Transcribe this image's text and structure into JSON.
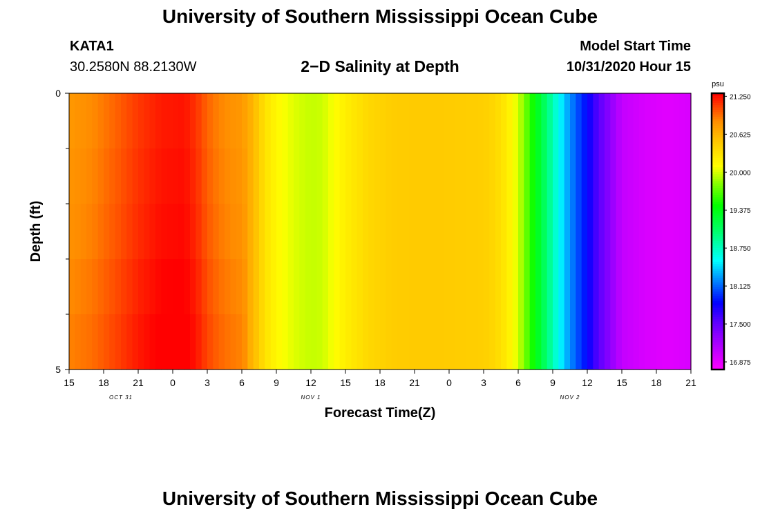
{
  "header": {
    "title": "University of Southern Mississippi Ocean Cube",
    "station_name": "KATA1",
    "station_coords": "30.2580N 88.2130W",
    "subtitle": "2−D Salinity at Depth",
    "model_start_label": "Model Start Time",
    "model_start_value": "10/31/2020 Hour 15"
  },
  "footer": {
    "title": "University of Southern Mississippi Ocean Cube"
  },
  "chart_data": {
    "type": "heatmap",
    "title": "2-D Salinity at Depth",
    "xlabel": "Forecast Time(Z)",
    "ylabel": "Depth (ft)",
    "x_hours": [
      0,
      3,
      6,
      9,
      12,
      15,
      18,
      21,
      24,
      27,
      30,
      33,
      36,
      39,
      42,
      45,
      48,
      51,
      54
    ],
    "x_tick_labels": [
      "15",
      "18",
      "21",
      "0",
      "3",
      "6",
      "9",
      "12",
      "15",
      "18",
      "21",
      "0",
      "3",
      "6",
      "9",
      "12",
      "15",
      "18",
      "21"
    ],
    "x_range_hours": [
      0,
      54
    ],
    "date_labels": [
      {
        "hour": 4.5,
        "text": "OCT 31"
      },
      {
        "hour": 21,
        "text": "NOV 1"
      },
      {
        "hour": 43.5,
        "text": "NOV 2"
      }
    ],
    "y_range": [
      0,
      5
    ],
    "y_tick_labels": [
      "0",
      "5"
    ],
    "y_minor_ticks": [
      1,
      2,
      3,
      4
    ],
    "depth_bands": 5,
    "salinity_profile": {
      "hours": [
        0,
        2,
        4,
        6,
        8,
        10,
        11,
        12,
        13,
        14,
        15,
        16,
        17,
        18,
        19,
        20,
        21,
        22,
        23,
        24,
        26,
        28,
        30,
        32,
        36,
        37,
        38,
        39,
        40,
        41,
        42,
        43,
        44,
        45,
        46,
        47,
        48,
        50,
        52,
        54
      ],
      "values": [
        20.78,
        20.85,
        20.98,
        21.12,
        21.22,
        21.24,
        21.14,
        20.98,
        20.88,
        20.82,
        20.78,
        20.6,
        20.32,
        20.15,
        20.06,
        20.0,
        19.96,
        19.98,
        20.1,
        20.22,
        20.38,
        20.46,
        20.48,
        20.48,
        20.45,
        20.38,
        20.25,
        20.0,
        19.6,
        19.2,
        18.8,
        18.4,
        18.1,
        17.85,
        17.55,
        17.3,
        17.05,
        16.95,
        16.9,
        16.95
      ]
    },
    "depth_offsets": [
      0.0,
      0.02,
      0.04,
      0.07,
      0.1
    ],
    "colorbar": {
      "unit": "psu",
      "min": 16.75,
      "max": 21.3,
      "tick_labels": [
        "21.250",
        "20.625",
        "20.000",
        "19.375",
        "18.750",
        "18.125",
        "17.500",
        "16.875"
      ],
      "tick_values": [
        21.25,
        20.625,
        20.0,
        19.375,
        18.75,
        18.125,
        17.5,
        16.875
      ],
      "stops": [
        {
          "v": 16.75,
          "color": "#ff00ff"
        },
        {
          "v": 17.15,
          "color": "#b000ff"
        },
        {
          "v": 17.55,
          "color": "#5a00ff"
        },
        {
          "v": 17.85,
          "color": "#0000ff"
        },
        {
          "v": 18.2,
          "color": "#0080ff"
        },
        {
          "v": 18.55,
          "color": "#00ffff"
        },
        {
          "v": 19.05,
          "color": "#00ff66"
        },
        {
          "v": 19.45,
          "color": "#00ff00"
        },
        {
          "v": 19.8,
          "color": "#80ff00"
        },
        {
          "v": 20.1,
          "color": "#ffff00"
        },
        {
          "v": 20.5,
          "color": "#ffc800"
        },
        {
          "v": 20.85,
          "color": "#ff8c00"
        },
        {
          "v": 21.3,
          "color": "#ff0000"
        }
      ]
    }
  }
}
